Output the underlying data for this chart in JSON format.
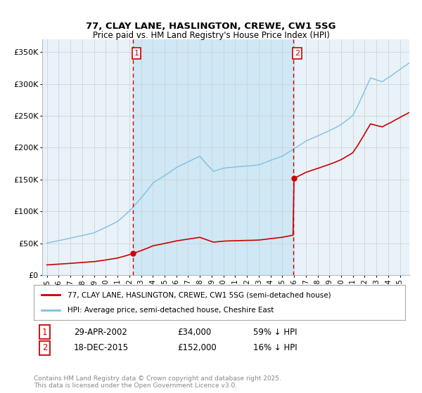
{
  "title": "77, CLAY LANE, HASLINGTON, CREWE, CW1 5SG",
  "subtitle": "Price paid vs. HM Land Registry's House Price Index (HPI)",
  "ylim": [
    0,
    370000
  ],
  "yticks": [
    0,
    50000,
    100000,
    150000,
    200000,
    250000,
    300000,
    350000
  ],
  "ytick_labels": [
    "£0",
    "£50K",
    "£100K",
    "£150K",
    "£200K",
    "£250K",
    "£300K",
    "£350K"
  ],
  "xlim_start": 1994.6,
  "xlim_end": 2025.8,
  "hpi_color": "#7fbfdf",
  "price_color": "#cc0000",
  "purchase1_date": 2002.32,
  "purchase1_price": 34000,
  "purchase2_date": 2015.96,
  "purchase2_price": 152000,
  "legend_line1": "77, CLAY LANE, HASLINGTON, CREWE, CW1 5SG (semi-detached house)",
  "legend_line2": "HPI: Average price, semi-detached house, Cheshire East",
  "annotation1_date": "29-APR-2002",
  "annotation1_price": "£34,000",
  "annotation1_hpi": "59% ↓ HPI",
  "annotation2_date": "18-DEC-2015",
  "annotation2_price": "£152,000",
  "annotation2_hpi": "16% ↓ HPI",
  "footer": "Contains HM Land Registry data © Crown copyright and database right 2025.\nThis data is licensed under the Open Government Licence v3.0.",
  "background_color": "#ffffff",
  "grid_color": "#cccccc",
  "plot_bg_color": "#e8f2f8",
  "shade_color": "#d0e8f5"
}
